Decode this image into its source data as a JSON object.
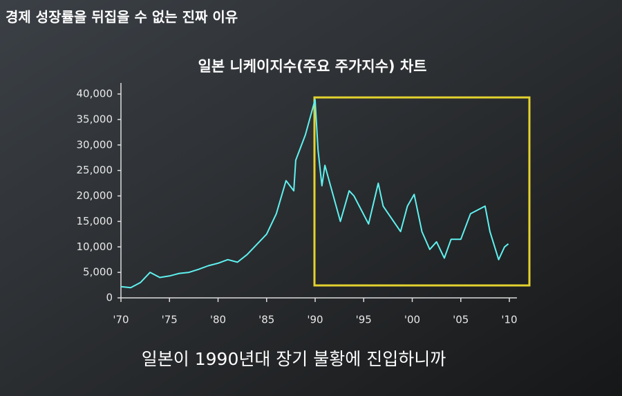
{
  "header": "경제 성장률을 뒤집을 수 없는 진짜 이유",
  "caption": "일본이 1990년대 장기 불황에 진입하니까",
  "chart_data": {
    "type": "line",
    "title": "일본 니케이지수(주요 주가지수) 차트",
    "x": [
      1970,
      1971,
      1972,
      1973,
      1974,
      1975,
      1976,
      1977,
      1978,
      1979,
      1980,
      1981,
      1982,
      1983,
      1984,
      1985,
      1986,
      1987,
      1987.8,
      1988,
      1989,
      1989.99,
      1990.3,
      1990.7,
      1991,
      1992.6,
      1993.5,
      1994,
      1995.5,
      1996.5,
      1997,
      1998.8,
      1999.5,
      2000.2,
      2001,
      2001.8,
      2002.5,
      2003.3,
      2004,
      2005,
      2006,
      2007.5,
      2008,
      2008.9,
      2009.5,
      2009.9
    ],
    "values": [
      2200,
      2000,
      3000,
      5000,
      4000,
      4300,
      4800,
      5000,
      5600,
      6300,
      6800,
      7500,
      7000,
      8500,
      10500,
      12500,
      16500,
      23000,
      21000,
      27000,
      32000,
      38900,
      29000,
      22000,
      26000,
      15000,
      21000,
      20000,
      14500,
      22500,
      18000,
      13000,
      18000,
      20300,
      13000,
      9500,
      11000,
      7800,
      11500,
      11500,
      16500,
      18000,
      13000,
      7500,
      10000,
      10600
    ],
    "color": "#5ff2f0",
    "xlim": [
      1970,
      2010
    ],
    "xticks": [
      {
        "value": 1970,
        "label": "'70"
      },
      {
        "value": 1975,
        "label": "'75"
      },
      {
        "value": 1980,
        "label": "'80"
      },
      {
        "value": 1985,
        "label": "'85"
      },
      {
        "value": 1990,
        "label": "'90"
      },
      {
        "value": 1995,
        "label": "'95"
      },
      {
        "value": 2000,
        "label": "'00"
      },
      {
        "value": 2005,
        "label": "'05"
      },
      {
        "value": 2010,
        "label": "'10"
      }
    ],
    "ylim": [
      0,
      40000
    ],
    "yticks": [
      0,
      {
        "value": 5000,
        "label": "5,000"
      },
      {
        "value": 10000,
        "label": "10,000"
      },
      {
        "value": 15000,
        "label": "15,000"
      },
      {
        "value": 20000,
        "label": "20,000"
      },
      {
        "value": 25000,
        "label": "25,000"
      },
      {
        "value": 30000,
        "label": "30,000"
      },
      {
        "value": 35000,
        "label": "35,000"
      },
      {
        "value": 40000,
        "label": "40,000"
      }
    ]
  }
}
